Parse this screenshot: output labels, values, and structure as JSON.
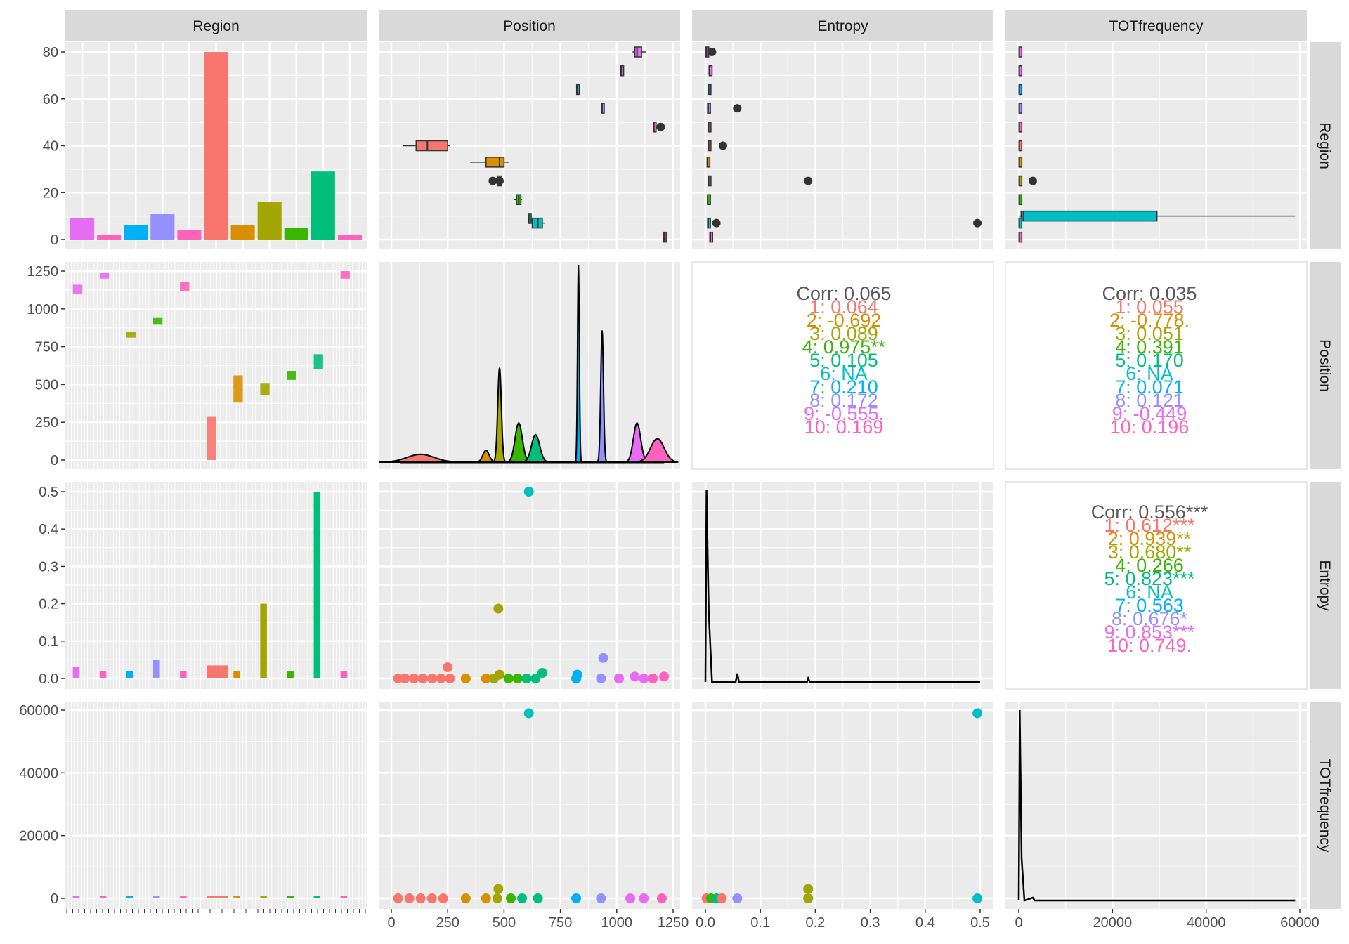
{
  "figure_kind": "scatterplot-matrix",
  "variables": [
    "Region",
    "Position",
    "Entropy",
    "TOTfrequency"
  ],
  "colors": [
    "#F8766D",
    "#D89000",
    "#A3A500",
    "#39B600",
    "#00BF7D",
    "#00BFC4",
    "#00B0F6",
    "#9590FF",
    "#E76BF3",
    "#FF62BC"
  ],
  "group_colors_in_bar_order": [
    "#E76BF3",
    "#FF62BC",
    "#00B0F6",
    "#9590FF",
    "#FF62BC",
    "#F8766D",
    "#D89000",
    "#A3A500",
    "#39B600",
    "#00BF7D",
    "#FF62BC"
  ],
  "chart_data": [
    {
      "panel": "Region x Region",
      "type": "bar",
      "values": [
        9,
        2,
        6,
        11,
        4,
        80,
        6,
        16,
        5,
        29,
        2
      ],
      "ylim": [
        0,
        80
      ],
      "yticks": [
        0,
        20,
        40,
        60,
        80
      ]
    },
    {
      "panel": "Position x Region",
      "type": "boxplot",
      "orientation": "horizontal",
      "boxes": [
        {
          "y": 40,
          "min": 50,
          "q1": 110,
          "med": 160,
          "q3": 250,
          "max": 260,
          "color_index": 0
        },
        {
          "y": 33,
          "min": 350,
          "q1": 420,
          "med": 480,
          "q3": 500,
          "max": 520,
          "color_index": 1
        },
        {
          "y": 25,
          "min": 460,
          "q1": 470,
          "med": 480,
          "q3": 490,
          "max": 500,
          "color_index": 2,
          "outliers": [
            450,
            480
          ]
        },
        {
          "y": 17,
          "min": 545,
          "q1": 555,
          "med": 565,
          "q3": 575,
          "max": 580,
          "color_index": 3
        },
        {
          "y": 9,
          "min": 605,
          "q1": 608,
          "med": 610,
          "q3": 612,
          "max": 615,
          "color_index": 4
        },
        {
          "y": 7,
          "min": 620,
          "q1": 625,
          "med": 650,
          "q3": 670,
          "max": 680,
          "color_index": 5
        },
        {
          "y": 64,
          "min": 820,
          "q1": 822,
          "med": 825,
          "q3": 828,
          "max": 830,
          "color_index": 6
        },
        {
          "y": 56,
          "min": 930,
          "q1": 932,
          "med": 935,
          "q3": 938,
          "max": 940,
          "color_index": 7
        },
        {
          "y": 72,
          "min": 1015,
          "q1": 1018,
          "med": 1020,
          "q3": 1022,
          "max": 1025,
          "color_index": 8
        },
        {
          "y": 80,
          "min": 1070,
          "q1": 1080,
          "med": 1090,
          "q3": 1110,
          "max": 1130,
          "color_index": 8
        },
        {
          "y": 48,
          "min": 1160,
          "q1": 1162,
          "med": 1165,
          "q3": 1168,
          "max": 1170,
          "color_index": 9,
          "outliers": [
            1195
          ]
        },
        {
          "y": 1,
          "min": 1205,
          "q1": 1207,
          "med": 1210,
          "q3": 1212,
          "max": 1215,
          "color_index": 9
        }
      ],
      "xlim": [
        0,
        1250
      ],
      "ylim": [
        0,
        80
      ]
    },
    {
      "panel": "Entropy x Region",
      "type": "boxplot",
      "orientation": "horizontal",
      "boxes": [
        {
          "y": 80,
          "min": 0,
          "q1": 0.001,
          "med": 0.002,
          "q3": 0.003,
          "max": 0.005,
          "color_index": 8,
          "outliers": [
            0.012
          ]
        },
        {
          "y": 72,
          "min": 0.006,
          "q1": 0.007,
          "med": 0.007,
          "q3": 0.008,
          "max": 0.008,
          "color_index": 8
        },
        {
          "y": 64,
          "min": 0.005,
          "q1": 0.005,
          "med": 0.006,
          "q3": 0.007,
          "max": 0.008,
          "color_index": 6
        },
        {
          "y": 56,
          "min": 0.003,
          "q1": 0.004,
          "med": 0.005,
          "q3": 0.005,
          "max": 0.006,
          "color_index": 7,
          "outliers": [
            0.058
          ]
        },
        {
          "y": 48,
          "min": 0.004,
          "q1": 0.005,
          "med": 0.006,
          "q3": 0.007,
          "max": 0.008,
          "color_index": 9
        },
        {
          "y": 40,
          "min": 0.004,
          "q1": 0.005,
          "med": 0.006,
          "q3": 0.007,
          "max": 0.008,
          "color_index": 0,
          "outliers": [
            0.032
          ]
        },
        {
          "y": 33,
          "min": 0.002,
          "q1": 0.003,
          "med": 0.004,
          "q3": 0.005,
          "max": 0.006,
          "color_index": 1
        },
        {
          "y": 25,
          "min": 0.004,
          "q1": 0.005,
          "med": 0.006,
          "q3": 0.007,
          "max": 0.008,
          "color_index": 2,
          "outliers": [
            0.187
          ]
        },
        {
          "y": 17,
          "min": 0.003,
          "q1": 0.004,
          "med": 0.004,
          "q3": 0.005,
          "max": 0.005,
          "color_index": 3
        },
        {
          "y": 7,
          "min": 0.003,
          "q1": 0.004,
          "med": 0.005,
          "q3": 0.006,
          "max": 0.007,
          "color_index": 5,
          "outliers": [
            0.02,
            0.495
          ]
        },
        {
          "y": 1,
          "min": 0.007,
          "q1": 0.008,
          "med": 0.009,
          "q3": 0.009,
          "max": 0.01,
          "color_index": 9
        }
      ],
      "xlim": [
        0,
        0.5
      ],
      "ylim": [
        0,
        80
      ]
    },
    {
      "panel": "TOTfrequency x Region",
      "type": "boxplot",
      "orientation": "horizontal",
      "boxes": [
        {
          "y": 80,
          "min": 0,
          "q1": 50,
          "med": 100,
          "q3": 200,
          "max": 300,
          "color_index": 8
        },
        {
          "y": 72,
          "min": 0,
          "q1": 50,
          "med": 100,
          "q3": 200,
          "max": 300,
          "color_index": 8
        },
        {
          "y": 64,
          "min": 0,
          "q1": 50,
          "med": 100,
          "q3": 200,
          "max": 300,
          "color_index": 6
        },
        {
          "y": 56,
          "min": 0,
          "q1": 50,
          "med": 100,
          "q3": 200,
          "max": 300,
          "color_index": 7
        },
        {
          "y": 48,
          "min": 0,
          "q1": 50,
          "med": 100,
          "q3": 200,
          "max": 300,
          "color_index": 9
        },
        {
          "y": 40,
          "min": 0,
          "q1": 50,
          "med": 100,
          "q3": 200,
          "max": 300,
          "color_index": 0
        },
        {
          "y": 33,
          "min": 0,
          "q1": 50,
          "med": 100,
          "q3": 200,
          "max": 300,
          "color_index": 1
        },
        {
          "y": 25,
          "min": 0,
          "q1": 50,
          "med": 100,
          "q3": 200,
          "max": 300,
          "color_index": 2,
          "outliers": [
            3000
          ]
        },
        {
          "y": 17,
          "min": 0,
          "q1": 50,
          "med": 100,
          "q3": 200,
          "max": 300,
          "color_index": 3
        },
        {
          "y": 10,
          "min": 0,
          "q1": 500,
          "med": 1000,
          "q3": 29500,
          "max": 59000,
          "color_index": 5
        },
        {
          "y": 7,
          "min": 0,
          "q1": 50,
          "med": 100,
          "q3": 200,
          "max": 300,
          "color_index": 5
        },
        {
          "y": 1,
          "min": 0,
          "q1": 50,
          "med": 100,
          "q3": 200,
          "max": 300,
          "color_index": 9
        }
      ],
      "xlim": [
        0,
        60000
      ],
      "ylim": [
        0,
        80
      ]
    },
    {
      "panel": "Region x Position",
      "type": "histogram",
      "xlim": [
        0,
        1250
      ],
      "yticks": [
        0,
        250,
        500,
        750,
        1000,
        1250
      ]
    },
    {
      "panel": "Position x Position",
      "type": "area",
      "xlim": [
        0,
        1250
      ],
      "xticks": [
        0,
        250,
        500,
        750,
        1000,
        1250
      ]
    },
    {
      "panel": "Entropy x Position",
      "type": "table",
      "corr_lines": [
        "Corr: 0.065",
        "1: 0.064",
        "2: -0.692",
        "3: 0.089",
        "4: 0.975**",
        "5: 0.105",
        "6: NA",
        "7: 0.210",
        "8: 0.172",
        "9: -0.555.",
        "10: 0.169"
      ],
      "line_color_indices": [
        -1,
        0,
        1,
        2,
        3,
        4,
        5,
        6,
        7,
        8,
        9
      ]
    },
    {
      "panel": "TOTfrequency x Position",
      "type": "table",
      "corr_lines": [
        "Corr: 0.035",
        "1: 0.055",
        "2: -0.778.",
        "3: 0.051",
        "4: 0.391",
        "5: 0.170",
        "6: NA",
        "7: 0.071",
        "8: 0.121",
        "9: -0.449",
        "10: 0.196"
      ],
      "line_color_indices": [
        -1,
        0,
        1,
        2,
        3,
        4,
        5,
        6,
        7,
        8,
        9
      ]
    },
    {
      "panel": "Region x Entropy",
      "type": "histogram",
      "xlim": [
        0,
        0.5
      ],
      "yticks": [
        0.0,
        0.1,
        0.2,
        0.3,
        0.4,
        0.5
      ]
    },
    {
      "panel": "Position x Entropy",
      "type": "scatter",
      "points": [
        {
          "x": 30,
          "y": 0,
          "c": 0
        },
        {
          "x": 60,
          "y": 0,
          "c": 0
        },
        {
          "x": 100,
          "y": 0,
          "c": 0
        },
        {
          "x": 140,
          "y": 0,
          "c": 0
        },
        {
          "x": 180,
          "y": 0,
          "c": 0
        },
        {
          "x": 220,
          "y": 0,
          "c": 0
        },
        {
          "x": 250,
          "y": 0.03,
          "c": 0
        },
        {
          "x": 260,
          "y": 0,
          "c": 0
        },
        {
          "x": 330,
          "y": 0,
          "c": 1
        },
        {
          "x": 420,
          "y": 0,
          "c": 1
        },
        {
          "x": 455,
          "y": 0,
          "c": 2
        },
        {
          "x": 475,
          "y": 0.187,
          "c": 2
        },
        {
          "x": 480,
          "y": 0.01,
          "c": 2
        },
        {
          "x": 520,
          "y": 0,
          "c": 3
        },
        {
          "x": 560,
          "y": 0,
          "c": 3
        },
        {
          "x": 600,
          "y": 0,
          "c": 4
        },
        {
          "x": 610,
          "y": 0.5,
          "c": 5
        },
        {
          "x": 640,
          "y": 0,
          "c": 4
        },
        {
          "x": 670,
          "y": 0.015,
          "c": 4
        },
        {
          "x": 820,
          "y": 0,
          "c": 6
        },
        {
          "x": 825,
          "y": 0.01,
          "c": 6
        },
        {
          "x": 930,
          "y": 0,
          "c": 7
        },
        {
          "x": 940,
          "y": 0.055,
          "c": 7
        },
        {
          "x": 1010,
          "y": 0,
          "c": 8
        },
        {
          "x": 1080,
          "y": 0.005,
          "c": 8
        },
        {
          "x": 1120,
          "y": 0,
          "c": 8
        },
        {
          "x": 1160,
          "y": 0,
          "c": 9
        },
        {
          "x": 1210,
          "y": 0.005,
          "c": 9
        }
      ],
      "xlim": [
        0,
        1250
      ],
      "ylim": [
        0,
        0.5
      ]
    },
    {
      "panel": "Entropy x Entropy",
      "type": "line",
      "xlim": [
        0,
        0.5
      ],
      "xticks": [
        0.0,
        0.1,
        0.2,
        0.3,
        0.4,
        0.5
      ]
    },
    {
      "panel": "TOTfrequency x Entropy",
      "type": "table",
      "corr_lines": [
        "Corr: 0.556***",
        "1: 0.612***",
        "2: 0.939**",
        "3: 0.680**",
        "4: 0.266",
        "5: 0.823***",
        "6: NA",
        "7: 0.563",
        "8: 0.676*",
        "9: 0.853***",
        "10: 0.749."
      ],
      "line_color_indices": [
        -1,
        0,
        1,
        2,
        3,
        4,
        5,
        6,
        7,
        8,
        9
      ]
    },
    {
      "panel": "Region x TOTfrequency",
      "type": "histogram",
      "yticks": [
        0,
        20000,
        40000,
        60000
      ]
    },
    {
      "panel": "Position x TOTfrequency",
      "type": "scatter",
      "points": [
        {
          "x": 30,
          "y": 0,
          "c": 0
        },
        {
          "x": 80,
          "y": 0,
          "c": 0
        },
        {
          "x": 130,
          "y": 0,
          "c": 0
        },
        {
          "x": 180,
          "y": 0,
          "c": 0
        },
        {
          "x": 230,
          "y": 0,
          "c": 0
        },
        {
          "x": 330,
          "y": 0,
          "c": 1
        },
        {
          "x": 420,
          "y": 0,
          "c": 1
        },
        {
          "x": 470,
          "y": 0,
          "c": 2
        },
        {
          "x": 475,
          "y": 3000,
          "c": 2
        },
        {
          "x": 530,
          "y": 0,
          "c": 3
        },
        {
          "x": 580,
          "y": 0,
          "c": 4
        },
        {
          "x": 610,
          "y": 59000,
          "c": 5
        },
        {
          "x": 650,
          "y": 0,
          "c": 4
        },
        {
          "x": 820,
          "y": 0,
          "c": 6
        },
        {
          "x": 930,
          "y": 0,
          "c": 7
        },
        {
          "x": 1060,
          "y": 0,
          "c": 8
        },
        {
          "x": 1120,
          "y": 0,
          "c": 8
        },
        {
          "x": 1200,
          "y": 0,
          "c": 9
        }
      ],
      "xlim": [
        0,
        1250
      ],
      "ylim": [
        0,
        60000
      ]
    },
    {
      "panel": "Entropy x TOTfrequency",
      "type": "scatter",
      "points": [
        {
          "x": 0.002,
          "y": 0,
          "c": 0
        },
        {
          "x": 0.01,
          "y": 0,
          "c": 3
        },
        {
          "x": 0.02,
          "y": 0,
          "c": 4
        },
        {
          "x": 0.03,
          "y": 0,
          "c": 0
        },
        {
          "x": 0.058,
          "y": 0,
          "c": 7
        },
        {
          "x": 0.187,
          "y": 3000,
          "c": 2
        },
        {
          "x": 0.187,
          "y": 0,
          "c": 2
        },
        {
          "x": 0.495,
          "y": 59000,
          "c": 5
        },
        {
          "x": 0.495,
          "y": 0,
          "c": 5
        }
      ],
      "xlim": [
        0,
        0.5
      ],
      "ylim": [
        0,
        60000
      ]
    },
    {
      "panel": "TOTfrequency x TOTfrequency",
      "type": "line",
      "xlim": [
        0,
        60000
      ],
      "xticks": [
        0,
        20000,
        40000,
        60000
      ]
    }
  ]
}
